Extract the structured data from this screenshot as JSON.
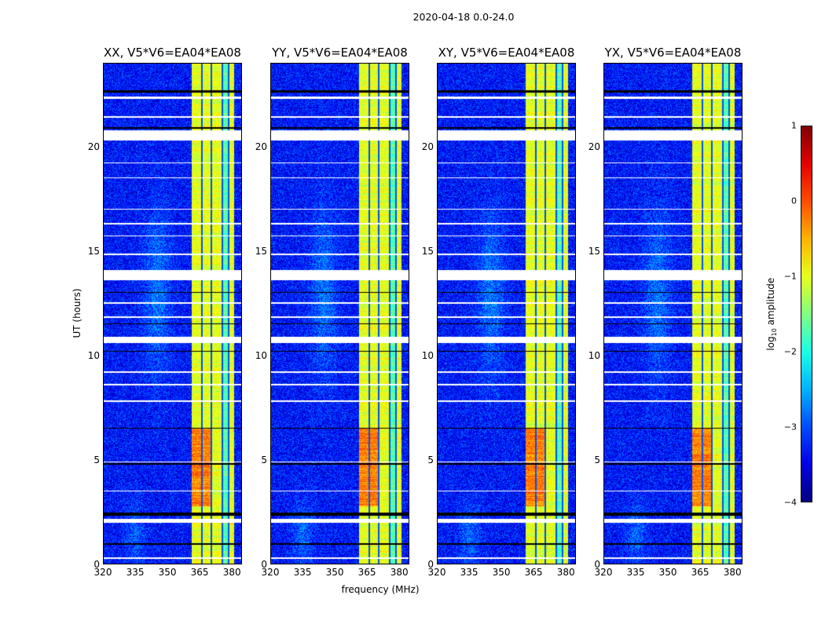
{
  "suptitle": "2020-04-18 0.0-24.0",
  "chart_data": {
    "type": "heatmap",
    "xlabel": "frequency (MHz)",
    "ylabel": "UT (hours)",
    "xlim": [
      320,
      384.7
    ],
    "ylim": [
      0,
      24
    ],
    "xticks": [
      "320",
      "335",
      "350",
      "365",
      "380"
    ],
    "yticks": [
      "0",
      "5",
      "10",
      "15",
      "20"
    ],
    "panels": [
      {
        "title": "XX, V5*V6=EA04*EA08"
      },
      {
        "title": "YY, V5*V6=EA04*EA08"
      },
      {
        "title": "XY, V5*V6=EA04*EA08"
      },
      {
        "title": "YX, V5*V6=EA04*EA08"
      }
    ],
    "colorbar": {
      "label_main": "log",
      "label_sub": "10",
      "label_rest": " amplitude",
      "range": [
        -4,
        1
      ],
      "colormap": "jet",
      "ticks": [
        "1",
        "0",
        "−1",
        "−2",
        "−3",
        "−4"
      ]
    },
    "background_log_amp": -3.3,
    "rfi_band_mhz": [
      361,
      381
    ],
    "rfi_band_log_amp": -1.0,
    "rfi_channel_dividers_mhz": [
      365.8,
      370.2,
      375.5,
      378.2
    ],
    "bright_interval_hours": [
      2.8,
      6.5
    ],
    "flagged_white_hours": [
      [
        20.3,
        20.8
      ],
      [
        13.6,
        14.1
      ],
      [
        2.0,
        2.2
      ],
      [
        10.6,
        10.9
      ],
      [
        22.3,
        22.4
      ],
      [
        14.8,
        14.9
      ],
      [
        11.8,
        11.9
      ],
      [
        7.8,
        7.85
      ],
      [
        8.6,
        8.65
      ],
      [
        17.0,
        17.05
      ],
      [
        18.5,
        18.55
      ],
      [
        3.5,
        3.55
      ],
      [
        15.7,
        15.75
      ],
      [
        21.4,
        21.45
      ],
      [
        12.5,
        12.55
      ],
      [
        9.2,
        9.25
      ],
      [
        0.3,
        0.35
      ],
      [
        16.3,
        16.35
      ],
      [
        19.2,
        19.25
      ],
      [
        4.9,
        4.95
      ]
    ],
    "flagged_black_hours": [
      [
        20.85,
        20.95
      ],
      [
        22.6,
        22.7
      ],
      [
        2.35,
        2.5
      ],
      [
        0.95,
        1.05
      ],
      [
        13.0,
        13.05
      ],
      [
        11.5,
        11.55
      ],
      [
        10.2,
        10.25
      ],
      [
        6.5,
        6.55
      ],
      [
        4.8,
        4.85
      ]
    ]
  }
}
